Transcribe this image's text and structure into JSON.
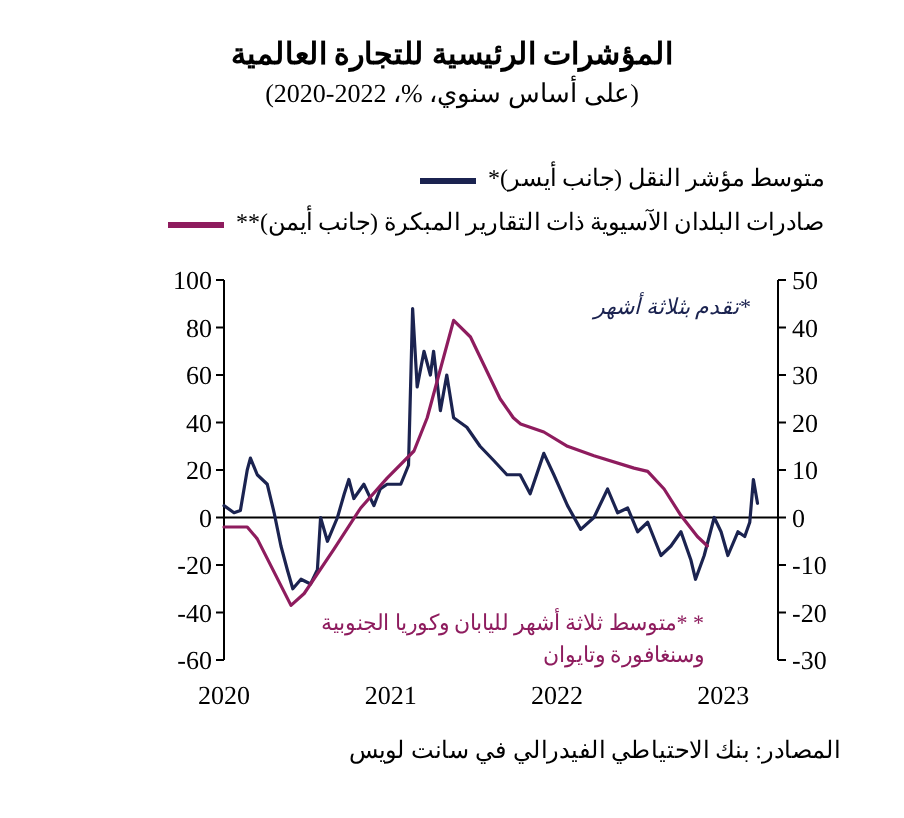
{
  "chart_data": {
    "type": "line",
    "title": "المؤشرات الرئيسية للتجارة العالمية",
    "subtitle": "(على أساس سنوي، %، 2022-2020)",
    "legend": "top",
    "grid": false,
    "ref_lines": [
      {
        "axis": "y",
        "value": 0,
        "color": "#000000"
      }
    ],
    "marker": "none",
    "line_style": "solid",
    "xlim": [
      "2020-01-01",
      "2023-05-01"
    ],
    "xticks": [
      "2020",
      "2021",
      "2022",
      "2023"
    ],
    "ylim": [
      -60,
      100
    ],
    "yticks": [
      -60,
      -40,
      -20,
      0,
      20,
      40,
      60,
      80,
      100
    ],
    "y2lim": [
      -30,
      50
    ],
    "y2ticks": [
      -30,
      -20,
      -10,
      0,
      10,
      20,
      30,
      40,
      50
    ],
    "series": [
      {
        "name": "متوسط مؤشر النقل (جانب أيسر)*",
        "color": "#1b2350",
        "axis": "y",
        "x": [
          "2020-01-01",
          "2020-01-23",
          "2020-02-06",
          "2020-02-21",
          "2020-02-28",
          "2020-03-14",
          "2020-04-05",
          "2020-04-20",
          "2020-05-05",
          "2020-05-19",
          "2020-05-31",
          "2020-06-18",
          "2020-07-09",
          "2020-07-24",
          "2020-07-31",
          "2020-08-15",
          "2020-09-06",
          "2020-09-21",
          "2020-10-01",
          "2020-10-12",
          "2020-11-03",
          "2020-11-25",
          "2020-12-09",
          "2020-12-24",
          "2021-01-23",
          "2021-02-09",
          "2021-02-18",
          "2021-02-28",
          "2021-03-15",
          "2021-03-29",
          "2021-04-05",
          "2021-04-20",
          "2021-05-04",
          "2021-05-19",
          "2021-06-17",
          "2021-07-16",
          "2021-08-15",
          "2021-09-13",
          "2021-10-12",
          "2021-11-03",
          "2021-12-03",
          "2021-12-25",
          "2022-01-24",
          "2022-02-22",
          "2022-03-23",
          "2022-04-22",
          "2022-05-14",
          "2022-06-05",
          "2022-06-27",
          "2022-07-19",
          "2022-08-17",
          "2022-09-08",
          "2022-09-30",
          "2022-10-22",
          "2022-11-01",
          "2022-11-20",
          "2022-12-12",
          "2022-12-27",
          "2023-01-11",
          "2023-02-02",
          "2023-02-17",
          "2023-02-28",
          "2023-03-08",
          "2023-03-17"
        ],
        "values": [
          5,
          2,
          3,
          20,
          25,
          18,
          14,
          2,
          -12,
          -22,
          -30,
          -26,
          -28,
          -22,
          0,
          -10,
          0,
          10,
          16,
          8,
          14,
          5,
          12,
          14,
          14,
          22,
          88,
          55,
          70,
          60,
          70,
          45,
          60,
          42,
          38,
          30,
          24,
          18,
          18,
          10,
          27,
          18,
          5,
          -5,
          0,
          12,
          2,
          4,
          -6,
          -2,
          -16,
          -12,
          -6,
          -18,
          -26,
          -16,
          0,
          -6,
          -16,
          -6,
          -8,
          -2,
          16,
          6
        ]
      },
      {
        "name": "صادرات البلدان الآسيوية ذات التقارير المبكرة (جانب أيمن)**",
        "color": "#8e1c5e",
        "axis": "y2",
        "x": [
          "2020-01-01",
          "2020-02-21",
          "2020-03-14",
          "2020-05-27",
          "2020-06-25",
          "2020-08-29",
          "2020-10-27",
          "2020-12-24",
          "2021-02-21",
          "2021-03-22",
          "2021-05-19",
          "2021-06-25",
          "2021-08-29",
          "2021-09-27",
          "2021-10-13",
          "2021-12-03",
          "2022-01-24",
          "2022-03-23",
          "2022-06-19",
          "2022-07-19",
          "2022-08-24",
          "2022-09-30",
          "2022-11-05",
          "2022-11-27"
        ],
        "values": [
          -2,
          -2,
          -4.5,
          -18.5,
          -16,
          -6.7,
          2,
          8.3,
          14,
          21,
          41.5,
          38,
          25,
          21,
          19.7,
          18,
          15,
          13,
          10.4,
          9.7,
          6,
          0.4,
          -4,
          -6
        ]
      }
    ],
    "annotations": [
      "*تقدم بثلاثة أشهر",
      "* *متوسط ثلاثة أشهر لليابان وكوريا الجنوبية وسنغافورة وتايوان",
      "المصادر: بنك الاحتياطي الفيدرالي في سانت لويس"
    ]
  }
}
